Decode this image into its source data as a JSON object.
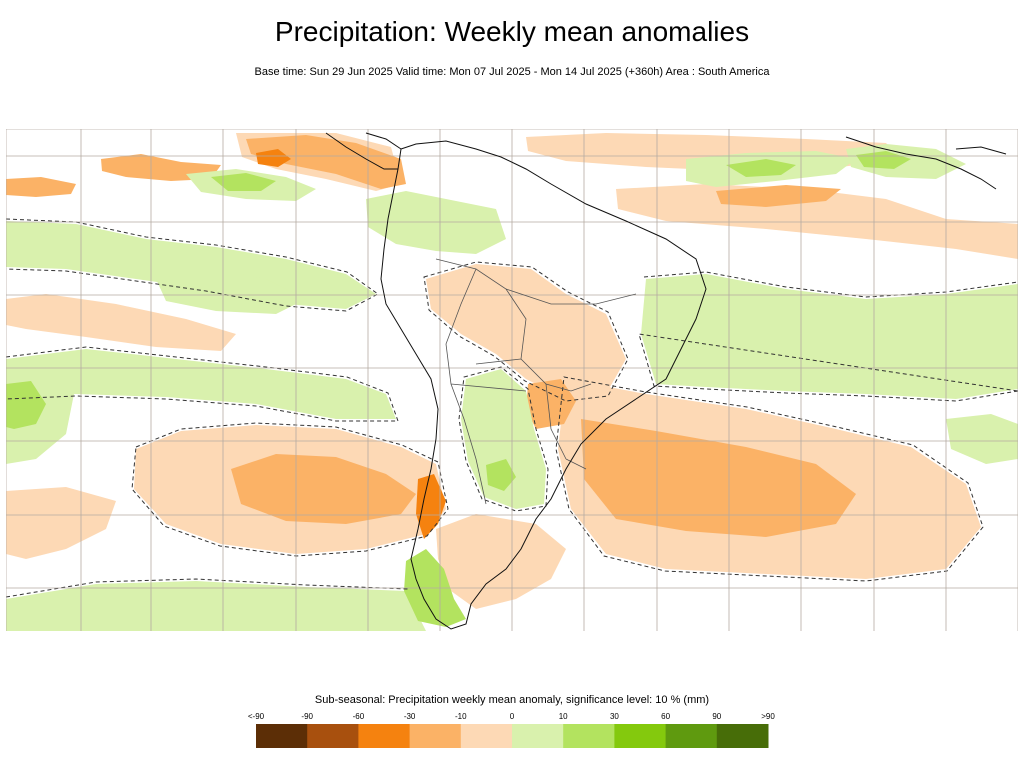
{
  "title": "Precipitation: Weekly mean anomalies",
  "subtitle": "Base time: Sun 29 Jun 2025 Valid time: Mon 07 Jul 2025 - Mon 14 Jul 2025 (+360h) Area : South America",
  "map": {
    "area": "South America",
    "variable": "Precipitation weekly mean anomaly",
    "units": "mm",
    "significance_level": "10 %",
    "grid_lines": true,
    "contour_style": "dashed significance contour"
  },
  "legend": {
    "title": "Sub-seasonal: Precipitation weekly mean anomaly, significance level: 10 % (mm)",
    "tick_labels": [
      "<-90",
      "-90",
      "-60",
      "-30",
      "-10",
      "0",
      "10",
      "30",
      "60",
      "90",
      ">90"
    ],
    "colors": [
      "#5c2e06",
      "#a8500e",
      "#f5820f",
      "#fbb266",
      "#fdd9b5",
      "#d9f1ad",
      "#b3e35f",
      "#84c90d",
      "#5f9a0f",
      "#476d08"
    ]
  },
  "colors": {
    "dry_light": "#fdd9b5",
    "dry_moderate": "#fbb266",
    "dry_strong": "#f5820f",
    "wet_light": "#d9f1ad",
    "wet_moderate": "#b3e35f",
    "wet_strong": "#84c90d",
    "coastline": "#111111",
    "borders": "#555555",
    "grid": "#b5aaa2"
  }
}
